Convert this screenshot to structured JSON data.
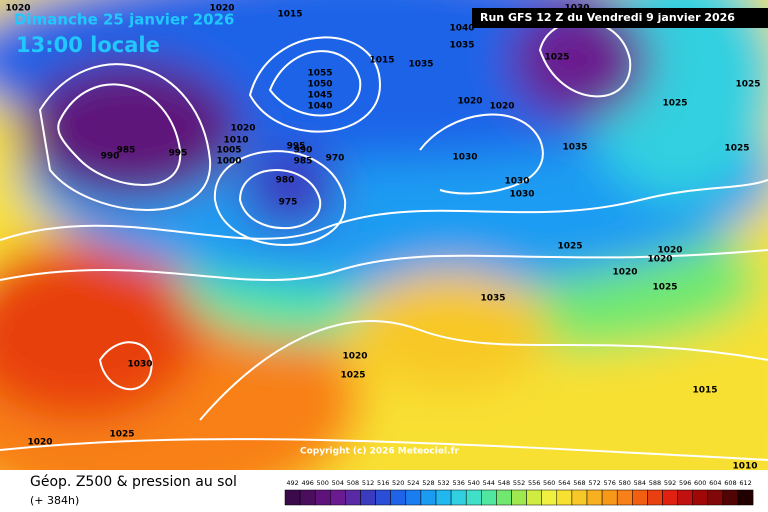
{
  "header": {
    "date": "Dimanche 25 janvier 2026",
    "time": "13:00 locale",
    "run": "Run GFS 12 Z du Vendredi 9 janvier 2026"
  },
  "footer": {
    "title": "Géop. Z500 & pression au sol",
    "lead": "(+ 384h)",
    "copyright": "Copyright (c) 2026 Meteociel.fr"
  },
  "scale": {
    "labels": [
      492,
      496,
      500,
      504,
      508,
      512,
      516,
      520,
      524,
      528,
      532,
      536,
      540,
      544,
      548,
      552,
      556,
      560,
      564,
      568,
      572,
      576,
      580,
      584,
      588,
      592,
      596,
      600,
      604,
      608,
      612
    ],
    "colors": [
      "#3a0a4a",
      "#4b0d5e",
      "#5e137a",
      "#6b1a8f",
      "#5a2aa5",
      "#3a3bbf",
      "#2a4fd6",
      "#1f63e8",
      "#1a7ef0",
      "#1a9cf2",
      "#20b8ee",
      "#30d0e0",
      "#40e0c8",
      "#50e8a0",
      "#70e870",
      "#a0e850",
      "#d0ec40",
      "#f0f040",
      "#f8e030",
      "#f8c828",
      "#f8b020",
      "#f89818",
      "#f88018",
      "#f06010",
      "#e84010",
      "#e02010",
      "#c01010",
      "#a00808",
      "#800808",
      "#500404",
      "#200000"
    ]
  },
  "isobars": [
    1020,
    1015,
    1020,
    1040,
    1035,
    1030,
    1025,
    1035,
    1055,
    1050,
    1045,
    1040,
    1020,
    1010,
    1005,
    1000,
    995,
    990,
    985,
    980,
    975,
    970,
    990,
    985,
    995,
    1020,
    1020,
    1030,
    1030,
    1030,
    1035,
    1025,
    1025,
    1025,
    1020,
    1020,
    1025,
    1035,
    1030,
    1020,
    1025,
    1015,
    1020,
    1025,
    1015,
    1010,
    1025,
    1020
  ]
}
